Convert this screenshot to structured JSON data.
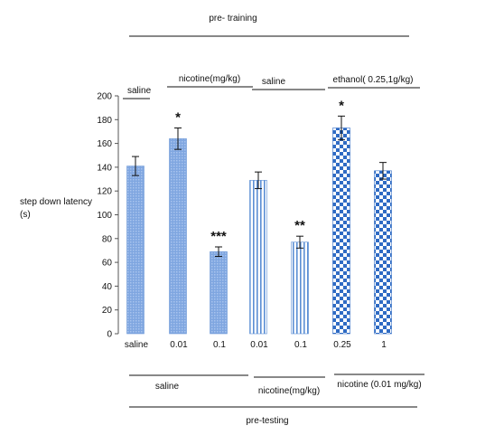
{
  "chart_data": {
    "type": "bar",
    "top_label": "pre- training",
    "bottom_label": "pre-testing",
    "ylabel": "step down latency\n(s)",
    "ylim": [
      0,
      200
    ],
    "yticks": [
      0,
      20,
      40,
      60,
      80,
      100,
      120,
      140,
      160,
      180,
      200
    ],
    "categories": [
      "saline",
      "0.01",
      "0.1",
      "0.01",
      "0.1",
      "0.25",
      "1"
    ],
    "values": [
      141,
      164,
      69,
      129,
      77,
      173,
      137
    ],
    "errors": [
      8,
      9,
      4,
      7,
      5,
      10,
      7
    ],
    "significance": [
      "",
      "*",
      "***",
      "",
      "**",
      "*",
      ""
    ],
    "patterns": [
      "dots",
      "dots",
      "dots",
      "vstripes",
      "vstripes",
      "checker",
      "checker"
    ],
    "pretraining_groups": [
      {
        "label": "saline",
        "bars": [
          0
        ]
      },
      {
        "label": "nicotine(mg/kg)",
        "bars": [
          1,
          2
        ]
      },
      {
        "label": "saline",
        "bars": [
          3,
          4
        ]
      },
      {
        "label": "ethanol( 0.25,1g/kg)",
        "bars": [
          5,
          6
        ]
      }
    ],
    "pretesting_groups": [
      {
        "label": "saline",
        "bars": [
          0,
          1,
          2
        ]
      },
      {
        "label": "nicotine(mg/kg)",
        "bars": [
          3,
          4
        ]
      },
      {
        "label": "nicotine (0.01 mg/kg)",
        "bars": [
          5,
          6
        ]
      }
    ],
    "colors": {
      "bar": "#5b8ed4",
      "axis": "#555555"
    }
  }
}
